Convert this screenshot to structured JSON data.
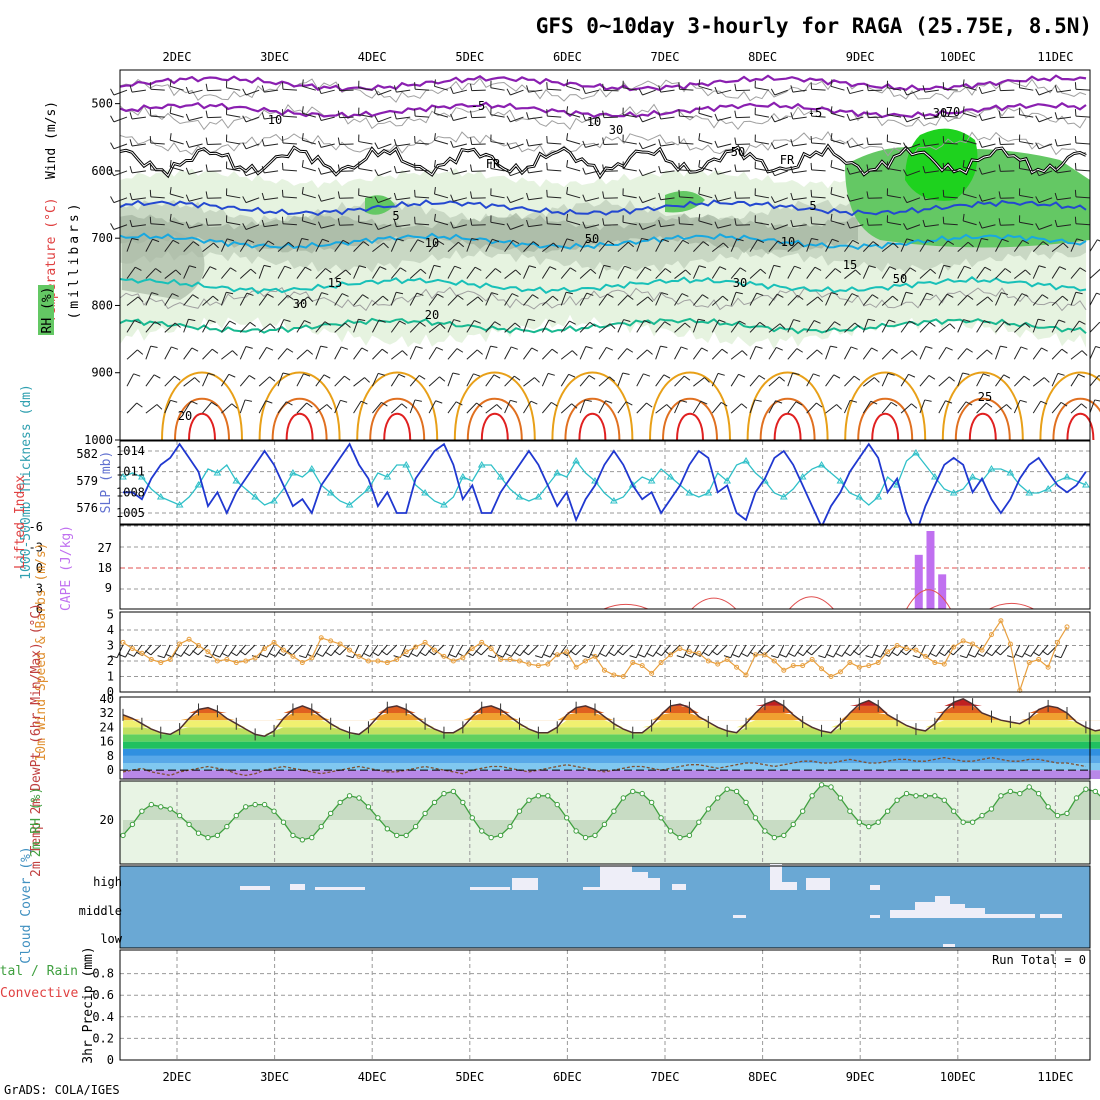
{
  "title": "GFS 0~10day 3-hourly for RAGA (25.75E, 8.5N)",
  "credit": "GrADS: COLA/IGES",
  "colors": {
    "rh_light": "#e6f3e0",
    "rh_mid": "#c9d8c4",
    "rh_grey": "#a8b8a4",
    "rh_green": "#64c864",
    "rh_bright": "#1ed21e",
    "temp_purple": "#8a1fb0",
    "temp_blue": "#2448d0",
    "temp_cyan": "#18a8e0",
    "temp_teal": "#18c0b8",
    "temp_green": "#18b890",
    "temp_orange": "#e8a018",
    "temp_dark_orange": "#e07020",
    "temp_red": "#e02020",
    "slp": "#2038d0",
    "thickness": "#30c0c8",
    "cape": "#c070f0",
    "lifted": "#e05050",
    "wind10": "#e8a040",
    "rh2m_fill": "#c8dcc4",
    "rh2m_line": "#40a040",
    "cloud": "#6aa8d4",
    "cloud_white": "#eeeef8"
  },
  "chart_data": [
    {
      "type": "heatmap",
      "panel": "upper_air",
      "left_label_parts": [
        "RH (%)",
        "Temperature (°C)",
        "Wind (m/s)"
      ],
      "ylabel": "(millibars)",
      "x_ticks": [
        "2DEC",
        "3DEC",
        "4DEC",
        "5DEC",
        "6DEC",
        "7DEC",
        "8DEC",
        "9DEC",
        "10DEC",
        "11DEC"
      ],
      "y_ticks": [
        500,
        600,
        700,
        800,
        900,
        1000
      ],
      "ylim": [
        1000,
        450
      ],
      "temperature_contour_labels": [
        "-5",
        "-5",
        "FR",
        "FR",
        "5",
        "5",
        "10",
        "10",
        "15",
        "15",
        "20",
        "20",
        "25"
      ],
      "rh_contour_labels": [
        "10",
        "10",
        "30",
        "30",
        "50",
        "50",
        "70",
        "30",
        "30",
        "50"
      ]
    },
    {
      "type": "line",
      "panel": "slp_thickness",
      "left_label": "1000-500mb Thickness (dm)",
      "right_label": "SLP (mb)",
      "left_ticks": [
        "582",
        "579",
        "576"
      ],
      "right_ticks": [
        "1014",
        "1011",
        "1008",
        "1005"
      ],
      "series": [
        {
          "name": "SLP (mb)",
          "values": [
            1008,
            1008,
            1007,
            1010,
            1012,
            1013,
            1015,
            1013,
            1011,
            1006,
            1008,
            1005,
            1008,
            1010,
            1012,
            1014,
            1012,
            1009,
            1006,
            1007,
            1005,
            1009,
            1011,
            1013,
            1015,
            1012,
            1010,
            1006,
            1008,
            1005,
            1005,
            1010,
            1012,
            1014,
            1015,
            1012,
            1007,
            1009,
            1005,
            1005,
            1008,
            1010,
            1012,
            1014,
            1012,
            1009,
            1006,
            1008,
            1004,
            1007,
            1009,
            1012,
            1014,
            1012,
            1009,
            1007,
            1008,
            1005,
            1007,
            1009,
            1012,
            1014,
            1013,
            1008,
            1009,
            1005,
            1004,
            1008,
            1010,
            1013,
            1014,
            1012,
            1009,
            1006,
            1003,
            1006,
            1008,
            1011,
            1013,
            1015,
            1013,
            1008,
            1010,
            1005,
            1002,
            1006,
            1009,
            1012,
            1013,
            1012,
            1008,
            1010,
            1007,
            1005,
            1007,
            1010,
            1012,
            1013,
            1011,
            1009,
            1008,
            1009,
            1011
          ]
        },
        {
          "name": "Thickness (dm)",
          "values": [
            579,
            579.5,
            579,
            577.5,
            576.5,
            576,
            575.5,
            576.5,
            578,
            580,
            579.5,
            580.5,
            578.5,
            577.5,
            576.5,
            575.5,
            576,
            577.5,
            579.5,
            579,
            580,
            578,
            577,
            576,
            575.5,
            576.5,
            577.5,
            579.5,
            579,
            580.5,
            580.5,
            578,
            577,
            576,
            575.5,
            576.5,
            579,
            578.5,
            580.5,
            580.5,
            579,
            577.5,
            576.5,
            576,
            576.5,
            578,
            579.5,
            579,
            581,
            579.5,
            578.5,
            577,
            576,
            576.5,
            578,
            579,
            578.5,
            580,
            579,
            578,
            577,
            576.5,
            577,
            579.5,
            578.5,
            580.5,
            581,
            579.5,
            578.5,
            577,
            576.5,
            577.5,
            579,
            580,
            580.5,
            579.5,
            578.5,
            577,
            576.5,
            575.5,
            576.5,
            579,
            578,
            581,
            582,
            580.5,
            579,
            577.5,
            577,
            577.5,
            579,
            578.5,
            580,
            580,
            579.5,
            578,
            577,
            577,
            577.5,
            578.5,
            579,
            578.5,
            578
          ]
        }
      ]
    },
    {
      "type": "bar",
      "panel": "cape_li",
      "left_label": "Lifted Index",
      "right_label": "CAPE (J/kg)",
      "left_ticks": [
        "-6",
        "-3",
        "0",
        "3",
        "6"
      ],
      "right_ticks": [
        "27",
        "18",
        "9"
      ],
      "cape_bars": [
        {
          "day": 9.6,
          "value": 25
        },
        {
          "day": 9.72,
          "value": 36
        },
        {
          "day": 9.84,
          "value": 16
        }
      ],
      "lifted_index_min_per_day": [
        {
          "day": 6.6,
          "value": 5.4
        },
        {
          "day": 7.5,
          "value": 3.6
        },
        {
          "day": 8.5,
          "value": 3.2
        },
        {
          "day": 9.7,
          "value": 1.2
        },
        {
          "day": 10.55,
          "value": 5.1
        }
      ]
    },
    {
      "type": "line",
      "panel": "wind10m",
      "left_label": "10m Wind Speed & Barbs (m/s)",
      "y_ticks": [
        "0",
        "1",
        "2",
        "3",
        "4",
        "5"
      ],
      "ylim": [
        0,
        5
      ],
      "series": [
        {
          "name": "10m Wind Speed",
          "values": [
            3.2,
            2.8,
            2.5,
            2.1,
            1.9,
            2.1,
            3.1,
            3.4,
            3.0,
            2.6,
            2.0,
            2.1,
            1.9,
            2.0,
            2.2,
            2.8,
            3.2,
            2.7,
            2.3,
            1.9,
            2.2,
            3.5,
            3.3,
            3.1,
            2.7,
            2.3,
            2.0,
            2.0,
            1.9,
            2.1,
            2.6,
            2.9,
            3.2,
            2.7,
            2.3,
            2.0,
            2.2,
            2.8,
            3.2,
            2.8,
            2.1,
            2.1,
            2.0,
            1.8,
            1.7,
            1.8,
            2.4,
            2.6,
            1.6,
            2.0,
            2.3,
            1.4,
            1.1,
            1.0,
            1.9,
            1.7,
            1.2,
            1.9,
            2.4,
            2.8,
            2.6,
            2.5,
            2.0,
            1.8,
            2.1,
            1.6,
            1.1,
            2.4,
            2.4,
            2.0,
            1.4,
            1.7,
            1.7,
            2.1,
            1.5,
            1.0,
            1.3,
            1.9,
            1.6,
            1.7,
            1.9,
            2.6,
            3.0,
            2.8,
            2.7,
            2.3,
            1.9,
            1.8,
            2.9,
            3.3,
            3.1,
            2.7,
            3.7,
            4.6,
            3.1,
            0.1,
            1.9,
            2.1,
            1.6,
            3.2,
            4.2
          ]
        }
      ]
    },
    {
      "type": "area",
      "panel": "temp2m",
      "left_label": "2m Temp 2m DewPt (6hr Min/Max) (°C)",
      "y_ticks": [
        "40",
        "32",
        "24",
        "16",
        "8",
        "0"
      ],
      "ylim": [
        -5,
        41
      ],
      "series": [
        {
          "name": "2m Temp",
          "values": [
            31,
            29,
            26,
            23,
            21,
            20,
            23,
            29,
            34,
            35,
            33,
            29,
            26,
            23,
            20,
            19,
            22,
            29,
            34,
            36,
            34,
            30,
            26,
            23,
            21,
            20,
            24,
            30,
            35,
            36,
            34,
            30,
            26,
            23,
            21,
            21,
            24,
            30,
            35,
            36,
            34,
            30,
            26,
            23,
            21,
            21,
            24,
            31,
            35,
            36,
            34,
            30,
            26,
            23,
            21,
            21,
            25,
            31,
            36,
            37,
            35,
            30,
            27,
            24,
            22,
            21,
            26,
            32,
            37,
            39,
            36,
            31,
            27,
            24,
            22,
            21,
            26,
            32,
            37,
            39,
            36,
            31,
            28,
            25,
            23,
            22,
            26,
            33,
            38,
            40,
            37,
            32,
            30,
            28,
            27,
            26,
            29,
            34,
            36,
            35,
            32,
            27,
            24,
            22,
            23
          ]
        },
        {
          "name": "2m DewPt",
          "values": [
            -1,
            0,
            1,
            -1,
            -2,
            -3,
            -1,
            0,
            1,
            2,
            1,
            0,
            -2,
            -3,
            -2,
            0,
            1,
            2,
            1,
            0,
            -1,
            -2,
            -1,
            0,
            1,
            2,
            1,
            0,
            -1,
            -1,
            0,
            1,
            2,
            1,
            0,
            -1,
            -2,
            0,
            1,
            2,
            2,
            1,
            0,
            -1,
            0,
            1,
            2,
            3,
            2,
            1,
            0,
            -1,
            0,
            1,
            2,
            2,
            1,
            0,
            1,
            2,
            3,
            3,
            2,
            1,
            2,
            3,
            4,
            4,
            3,
            2,
            3,
            4,
            5,
            5,
            4,
            4,
            5,
            6,
            5,
            4,
            4,
            5,
            6,
            6,
            5,
            5,
            6,
            7,
            6,
            5,
            5,
            6,
            7,
            6,
            5,
            5,
            6,
            6,
            5,
            4,
            4,
            3,
            2
          ]
        }
      ]
    },
    {
      "type": "area",
      "panel": "rh2m",
      "left_label": "2m RH (%)",
      "y_ticks": [
        "20"
      ],
      "series": [
        {
          "name": "2m RH",
          "values": [
            13,
            18,
            24,
            27,
            26,
            25,
            22,
            18,
            14,
            12,
            13,
            17,
            22,
            26,
            27,
            27,
            24,
            19,
            13,
            11,
            12,
            17,
            23,
            28,
            31,
            30,
            26,
            21,
            16,
            13,
            13,
            17,
            23,
            28,
            32,
            33,
            28,
            21,
            15,
            12,
            13,
            17,
            24,
            29,
            31,
            31,
            27,
            21,
            15,
            12,
            13,
            18,
            24,
            30,
            33,
            32,
            28,
            21,
            15,
            12,
            13,
            19,
            25,
            30,
            34,
            33,
            28,
            21,
            15,
            12,
            13,
            18,
            24,
            31,
            36,
            35,
            30,
            24,
            19,
            17,
            19,
            24,
            29,
            32,
            31,
            31,
            31,
            29,
            24,
            19,
            19,
            22,
            25,
            31,
            33,
            32,
            35,
            32,
            26,
            22,
            23,
            30,
            34,
            33,
            29
          ]
        }
      ]
    },
    {
      "type": "heatmap",
      "panel": "cloud_cover",
      "left_label": "Cloud Cover (%)",
      "levels": [
        "high",
        "middle",
        "low"
      ]
    },
    {
      "type": "bar",
      "panel": "precip",
      "left_label_parts": [
        "Total / Rain",
        "Convective",
        "3hr Precip (mm)"
      ],
      "y_ticks": [
        "0.8",
        "0.6",
        "0.4",
        "0.2",
        "0"
      ],
      "ylim": [
        0,
        1
      ],
      "run_total": "Run Total = 0",
      "x_ticks": [
        "2DEC",
        "3DEC",
        "4DEC",
        "5DEC",
        "6DEC",
        "7DEC",
        "8DEC",
        "9DEC",
        "10DEC",
        "11DEC"
      ]
    }
  ]
}
